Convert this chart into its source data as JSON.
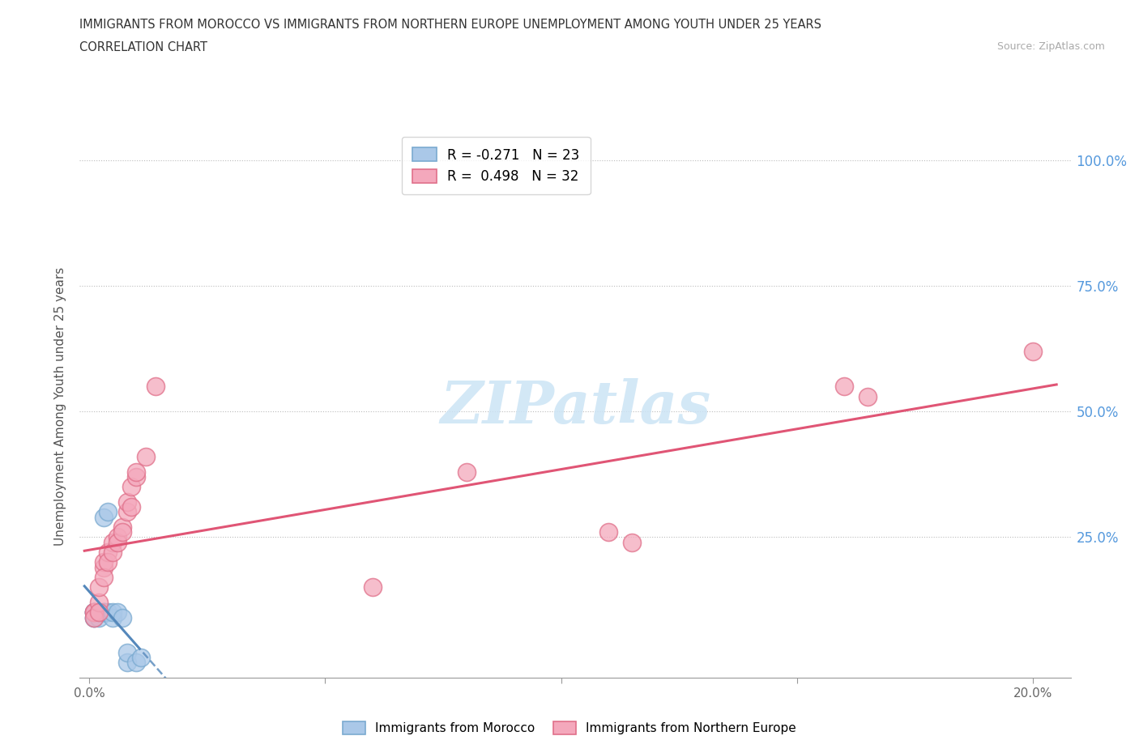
{
  "title_line1": "IMMIGRANTS FROM MOROCCO VS IMMIGRANTS FROM NORTHERN EUROPE UNEMPLOYMENT AMONG YOUTH UNDER 25 YEARS",
  "title_line2": "CORRELATION CHART",
  "source": "Source: ZipAtlas.com",
  "xlim": [
    -0.002,
    0.208
  ],
  "ylim": [
    -0.03,
    1.05
  ],
  "ylabel": "Unemployment Among Youth under 25 years",
  "morocco_R": -0.271,
  "morocco_N": 23,
  "northern_europe_R": 0.498,
  "northern_europe_N": 32,
  "morocco_color": "#aac8e8",
  "northern_europe_color": "#f4a8bc",
  "morocco_edge_color": "#7aaad0",
  "northern_europe_edge_color": "#e0708a",
  "morocco_line_color": "#5588bb",
  "northern_europe_line_color": "#e05575",
  "watermark_color": "#cce4f5",
  "morocco_x": [
    0.001,
    0.001,
    0.001,
    0.001,
    0.001,
    0.002,
    0.002,
    0.002,
    0.002,
    0.003,
    0.003,
    0.003,
    0.003,
    0.004,
    0.004,
    0.005,
    0.005,
    0.006,
    0.007,
    0.008,
    0.008,
    0.01,
    0.011
  ],
  "morocco_y": [
    0.1,
    0.1,
    0.09,
    0.09,
    0.1,
    0.1,
    0.1,
    0.09,
    0.1,
    0.29,
    0.1,
    0.1,
    0.1,
    0.3,
    0.1,
    0.09,
    0.1,
    0.1,
    0.09,
    0.0,
    0.02,
    0.0,
    0.01
  ],
  "northern_europe_x": [
    0.001,
    0.001,
    0.001,
    0.002,
    0.002,
    0.002,
    0.003,
    0.003,
    0.003,
    0.004,
    0.004,
    0.005,
    0.005,
    0.006,
    0.006,
    0.007,
    0.007,
    0.008,
    0.008,
    0.009,
    0.009,
    0.01,
    0.01,
    0.012,
    0.014,
    0.06,
    0.08,
    0.11,
    0.115,
    0.16,
    0.165,
    0.2
  ],
  "northern_europe_y": [
    0.1,
    0.1,
    0.09,
    0.12,
    0.15,
    0.1,
    0.19,
    0.2,
    0.17,
    0.22,
    0.2,
    0.24,
    0.22,
    0.25,
    0.24,
    0.27,
    0.26,
    0.3,
    0.32,
    0.31,
    0.35,
    0.37,
    0.38,
    0.41,
    0.55,
    0.15,
    0.38,
    0.26,
    0.24,
    0.55,
    0.53,
    0.62
  ],
  "xtick_positions": [
    0.0,
    0.05,
    0.1,
    0.15,
    0.2
  ],
  "xtick_labels": [
    "0.0%",
    "",
    "",
    "",
    "20.0%"
  ],
  "ytick_positions": [
    0.25,
    0.5,
    0.75,
    1.0
  ],
  "ytick_labels": [
    "25.0%",
    "50.0%",
    "75.0%",
    "100.0%"
  ]
}
